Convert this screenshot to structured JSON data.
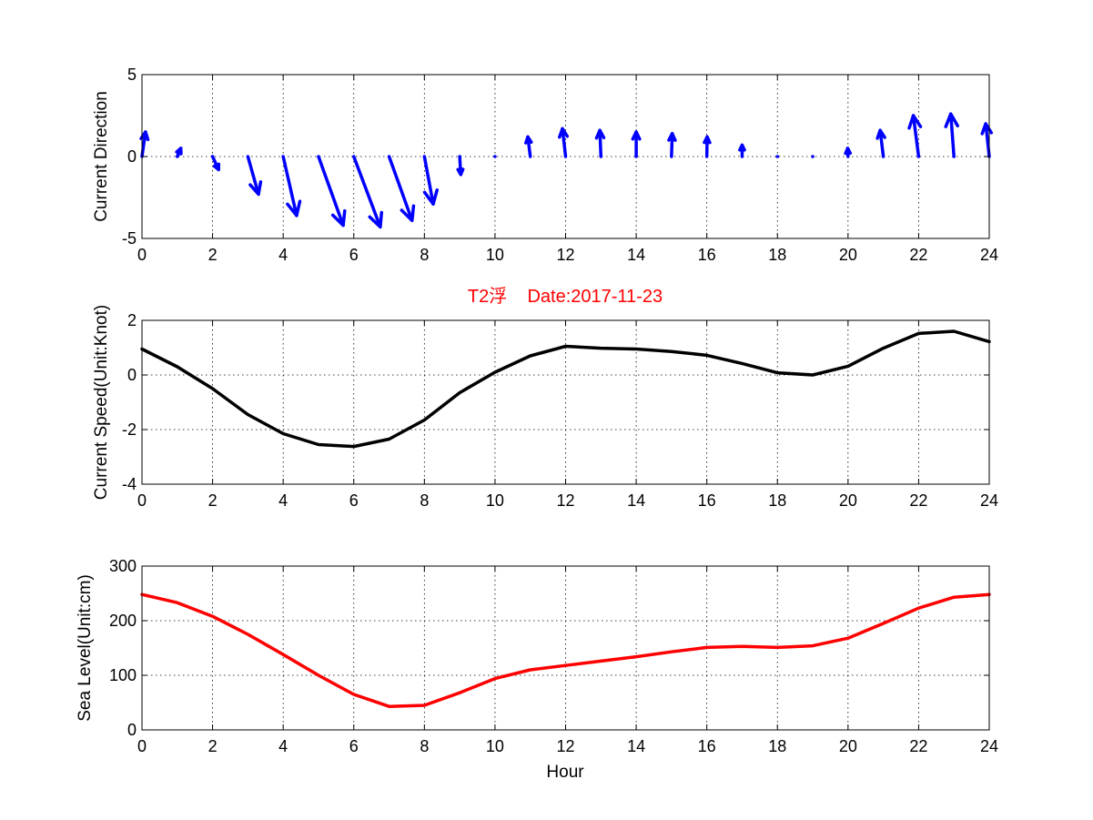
{
  "colors": {
    "arrows": "#0000ff",
    "speed_line": "#000000",
    "sea_level_line": "#ff0000",
    "title": "#ff0000"
  },
  "chart_data": [
    {
      "type": "quiver",
      "ylabel": "Current Direction",
      "xlabel": "",
      "xlim": [
        0,
        24
      ],
      "ylim": [
        -5,
        5
      ],
      "xticks": [
        0,
        2,
        4,
        6,
        8,
        10,
        12,
        14,
        16,
        18,
        20,
        22,
        24
      ],
      "yticks": [
        -5,
        0,
        5
      ],
      "grid": true,
      "hours": [
        0,
        1,
        2,
        3,
        4,
        5,
        6,
        7,
        8,
        9,
        10,
        11,
        12,
        13,
        14,
        15,
        16,
        17,
        18,
        19,
        20,
        21,
        22,
        23,
        24
      ],
      "u": [
        0.1,
        0.1,
        0.17,
        0.3,
        0.38,
        0.7,
        0.75,
        0.65,
        0.25,
        0.03,
        0.0,
        -0.07,
        -0.09,
        -0.03,
        0.0,
        0.02,
        0.01,
        0.0,
        0.0,
        0.0,
        -0.01,
        -0.09,
        -0.15,
        -0.09,
        -0.1
      ],
      "v": [
        1.5,
        0.5,
        -0.8,
        -2.3,
        -3.6,
        -4.2,
        -4.3,
        -3.9,
        -2.9,
        -1.1,
        0.1,
        1.2,
        1.7,
        1.6,
        1.5,
        1.4,
        1.2,
        0.7,
        0.05,
        -0.05,
        0.5,
        1.6,
        2.5,
        2.6,
        2.0
      ]
    },
    {
      "type": "line",
      "title": "T2浮    Date:2017-11-23",
      "ylabel": "Current Speed(Unit:Knot)",
      "xlabel": "",
      "xlim": [
        0,
        24
      ],
      "ylim": [
        -4,
        2
      ],
      "xticks": [
        0,
        2,
        4,
        6,
        8,
        10,
        12,
        14,
        16,
        18,
        20,
        22,
        24
      ],
      "yticks": [
        -4,
        -2,
        0,
        2
      ],
      "grid": true,
      "x": [
        0,
        1,
        2,
        3,
        4,
        5,
        6,
        7,
        8,
        9,
        10,
        11,
        12,
        13,
        14,
        15,
        16,
        17,
        18,
        19,
        20,
        21,
        22,
        23,
        24
      ],
      "y": [
        0.95,
        0.3,
        -0.5,
        -1.45,
        -2.15,
        -2.55,
        -2.62,
        -2.35,
        -1.65,
        -0.65,
        0.1,
        0.7,
        1.05,
        0.98,
        0.95,
        0.86,
        0.72,
        0.42,
        0.08,
        0.0,
        0.32,
        0.98,
        1.52,
        1.6,
        1.22
      ]
    },
    {
      "type": "line",
      "ylabel": "Sea Level(Unit:cm)",
      "xlabel": "Hour",
      "xlim": [
        0,
        24
      ],
      "ylim": [
        0,
        300
      ],
      "xticks": [
        0,
        2,
        4,
        6,
        8,
        10,
        12,
        14,
        16,
        18,
        20,
        22,
        24
      ],
      "yticks": [
        0,
        100,
        200,
        300
      ],
      "grid": true,
      "x": [
        0,
        1,
        2,
        3,
        4,
        5,
        6,
        7,
        8,
        9,
        10,
        11,
        12,
        13,
        14,
        15,
        16,
        17,
        18,
        19,
        20,
        21,
        22,
        23,
        24
      ],
      "y": [
        248,
        233,
        208,
        175,
        138,
        100,
        65,
        43,
        45,
        68,
        94,
        110,
        118,
        126,
        134,
        143,
        151,
        153,
        151,
        154,
        168,
        195,
        223,
        243,
        248
      ]
    }
  ]
}
